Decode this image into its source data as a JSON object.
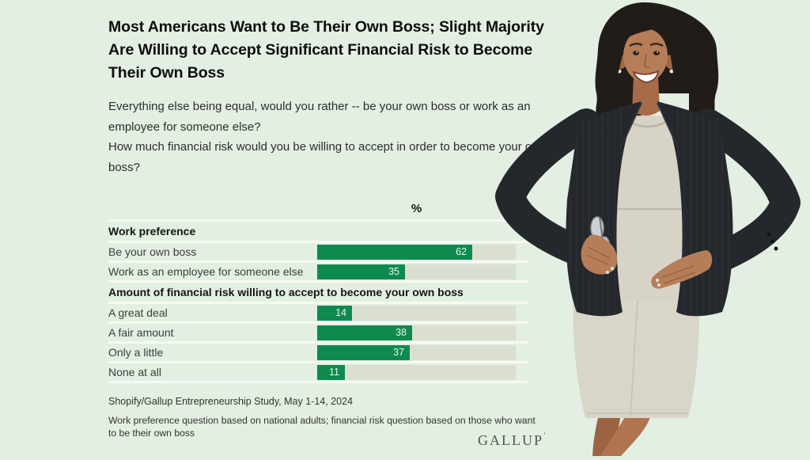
{
  "page": {
    "background": "#e3efe2"
  },
  "header": {
    "title": "Most Americans Want to Be Their Own Boss; Slight Majority Are Willing to Accept Significant Financial Risk to Become Their Own Boss"
  },
  "questions": {
    "q1": "Everything else being equal, would you rather -- be your own boss or work as an employee for someone else?",
    "q2": "How much financial risk would you be willing to accept in order to become your own boss?"
  },
  "chart_data": {
    "type": "bar",
    "orientation": "horizontal",
    "unit_header": "%",
    "axis_range": [
      0,
      100
    ],
    "bar_color": "#0f8a4f",
    "track_color": "#dadfd2",
    "value_label_color": "#e9f3ea",
    "sections": [
      {
        "header": "Work preference",
        "rows": [
          {
            "label": "Be your own boss",
            "value": 62
          },
          {
            "label": "Work as an employee for someone else",
            "value": 35
          }
        ]
      },
      {
        "header": "Amount of financial risk willing to accept to become your own boss",
        "rows": [
          {
            "label": "A great deal",
            "value": 14
          },
          {
            "label": "A fair amount",
            "value": 38
          },
          {
            "label": "Only a little",
            "value": 37
          },
          {
            "label": "None at all",
            "value": 11
          }
        ]
      }
    ]
  },
  "footer": {
    "source": "Shopify/Gallup Entrepreneurship Study, May 1-14, 2024",
    "note": "Work preference question based on national adults; financial risk question based on those who want to be their own boss",
    "logo_text": "GALLUP",
    "logo_mark": "’"
  },
  "photo": {
    "alt": "Smiling businesswoman with shoulder-length dark hair wearing a dark pinstripe blazer over a beige dress, hands on hips, holding eyeglasses"
  }
}
